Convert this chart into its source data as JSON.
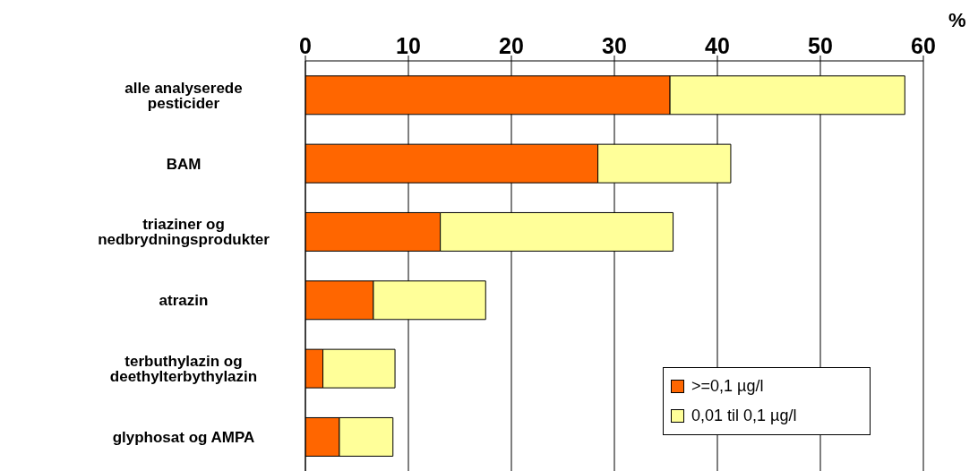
{
  "chart_data": {
    "type": "bar",
    "orientation": "horizontal",
    "stacked": true,
    "xlabel": "%",
    "categories": [
      "alle analyserede pesticider",
      "BAM",
      "triaziner og nedbrydningsprodukter",
      "atrazin",
      "terbuthylazin og deethylterbythylazin",
      "glyphosat og AMPA"
    ],
    "series": [
      {
        "name": ">=0,1 µg/l",
        "color": "#ff6600",
        "values": [
          35.4,
          28.4,
          13.1,
          6.6,
          1.7,
          3.3
        ]
      },
      {
        "name": "0,01 til 0,1 µg/l",
        "color": "#ffff99",
        "values": [
          22.8,
          12.9,
          22.6,
          10.9,
          7.0,
          5.2
        ]
      }
    ],
    "xlim": [
      0,
      60
    ],
    "xticks": [
      0,
      10,
      20,
      30,
      40,
      50,
      60
    ],
    "grid": "x",
    "legend": "bottom right"
  }
}
